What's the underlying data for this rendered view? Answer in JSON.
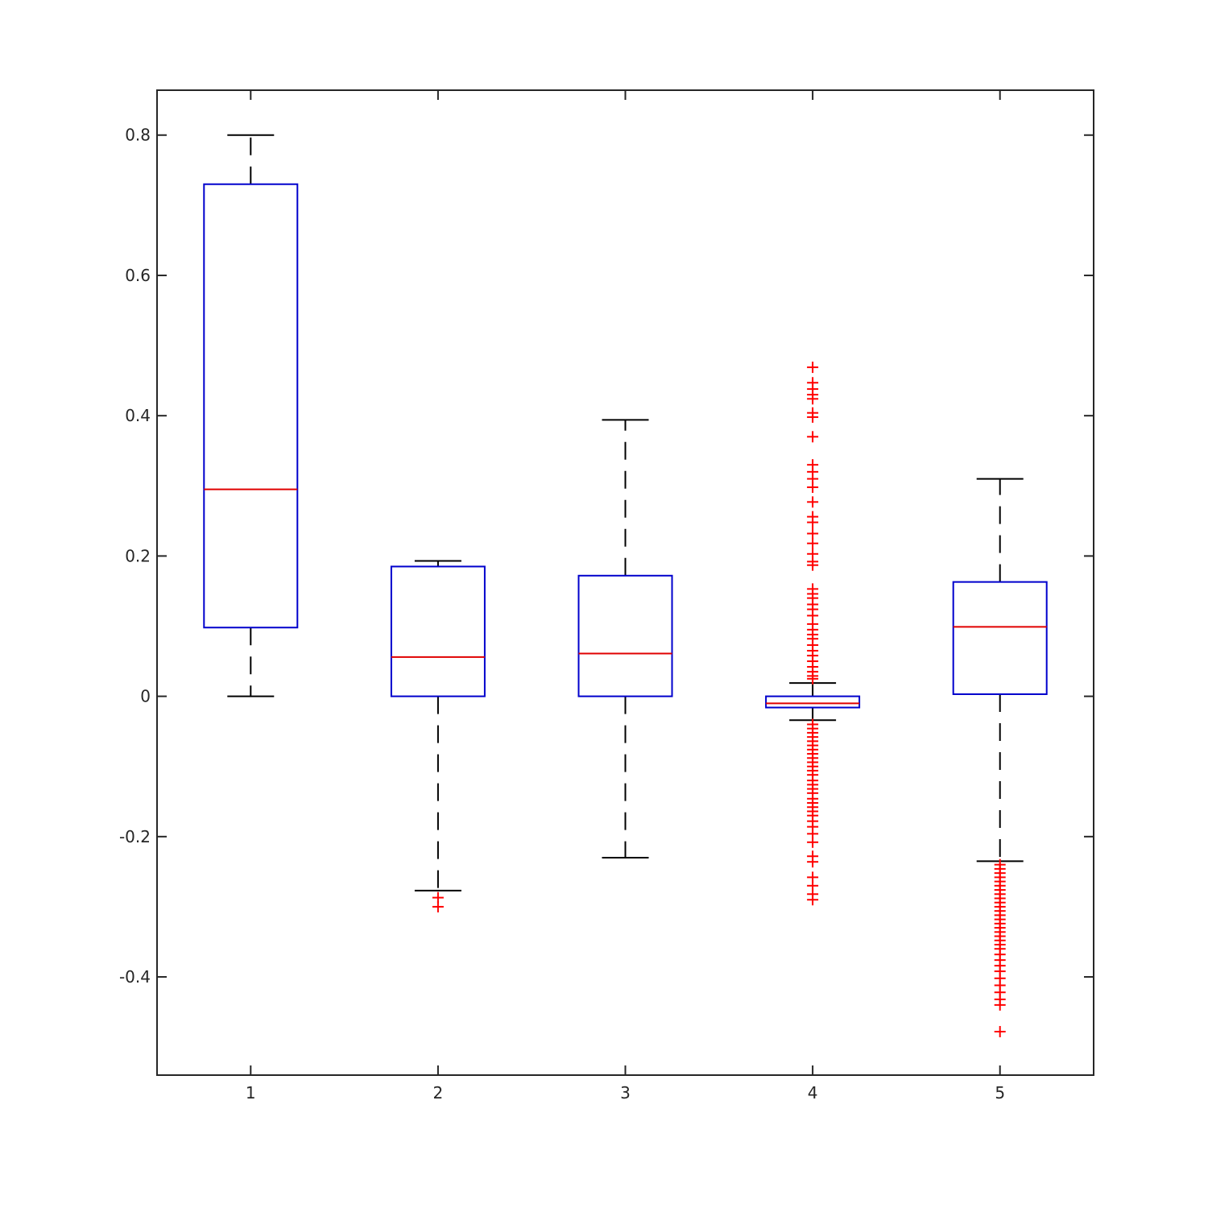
{
  "chart_data": {
    "type": "box",
    "title": "",
    "xlabel": "",
    "ylabel": "",
    "categories": [
      "1",
      "2",
      "3",
      "4",
      "5"
    ],
    "ylim": [
      -0.54,
      0.864
    ],
    "yticks": [
      -0.4,
      -0.2,
      0,
      0.2,
      0.4,
      0.6,
      0.8
    ],
    "ytick_labels": [
      "-0.4",
      "-0.2",
      "0",
      "0.2",
      "0.4",
      "0.6",
      "0.8"
    ],
    "grid": false,
    "colors": {
      "box": "#0000cc",
      "median": "#e00000",
      "whisker": "#000000",
      "outlier": "#ff0000",
      "axes": "#262626"
    },
    "boxes": [
      {
        "category": "1",
        "whisker_low": 0.0,
        "q1": 0.098,
        "median": 0.295,
        "q3": 0.73,
        "whisker_high": 0.8,
        "outliers": []
      },
      {
        "category": "2",
        "whisker_low": -0.277,
        "q1": 0.0,
        "median": 0.056,
        "q3": 0.185,
        "whisker_high": 0.193,
        "outliers": [
          -0.287,
          -0.3
        ]
      },
      {
        "category": "3",
        "whisker_low": -0.23,
        "q1": 0.0,
        "median": 0.061,
        "q3": 0.172,
        "whisker_high": 0.394,
        "outliers": []
      },
      {
        "category": "4",
        "whisker_low": -0.034,
        "q1": -0.016,
        "median": -0.01,
        "q3": 0.0,
        "whisker_high": 0.019,
        "outliers": [
          0.469,
          0.447,
          0.438,
          0.43,
          0.424,
          0.404,
          0.398,
          0.37,
          0.33,
          0.32,
          0.31,
          0.298,
          0.277,
          0.256,
          0.248,
          0.232,
          0.218,
          0.203,
          0.192,
          0.187,
          0.153,
          0.146,
          0.14,
          0.131,
          0.124,
          0.115,
          0.103,
          0.095,
          0.088,
          0.082,
          0.073,
          0.065,
          0.058,
          0.05,
          0.042,
          0.035,
          0.029,
          0.025,
          -0.04,
          -0.046,
          -0.052,
          -0.058,
          -0.064,
          -0.07,
          -0.076,
          -0.082,
          -0.088,
          -0.094,
          -0.1,
          -0.106,
          -0.112,
          -0.12,
          -0.126,
          -0.132,
          -0.138,
          -0.146,
          -0.152,
          -0.158,
          -0.164,
          -0.17,
          -0.178,
          -0.186,
          -0.196,
          -0.208,
          -0.228,
          -0.236,
          -0.258,
          -0.27,
          -0.282,
          -0.29
        ]
      },
      {
        "category": "5",
        "whisker_low": -0.235,
        "q1": 0.003,
        "median": 0.099,
        "q3": 0.163,
        "whisker_high": 0.31,
        "outliers": [
          -0.24,
          -0.246,
          -0.252,
          -0.258,
          -0.264,
          -0.27,
          -0.276,
          -0.282,
          -0.288,
          -0.294,
          -0.3,
          -0.306,
          -0.312,
          -0.318,
          -0.324,
          -0.33,
          -0.336,
          -0.342,
          -0.348,
          -0.354,
          -0.36,
          -0.368,
          -0.376,
          -0.384,
          -0.392,
          -0.402,
          -0.412,
          -0.422,
          -0.432,
          -0.44,
          -0.478
        ]
      }
    ]
  }
}
